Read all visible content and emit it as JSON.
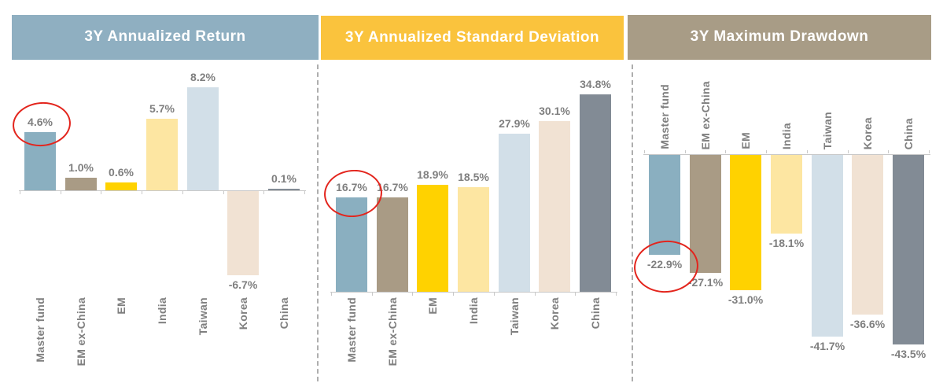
{
  "page": {
    "background": "#FFFFFF"
  },
  "styles": {
    "title_text_color": "#FFFFFF",
    "label_text_color": "#7F7F7F",
    "axis_color": "#C9C9C9",
    "separator_color": "#AEAEAE",
    "annotation_circle_color": "#E3251D"
  },
  "bar_colors": {
    "Master fund": "#8AAFC0",
    "EM ex-China": "#A99B85",
    "EM": "#FFD200",
    "India": "#FDE6A2",
    "Taiwan": "#D2DFE8",
    "Korea": "#F1E2D3",
    "China": "#828B95"
  },
  "chart_data": [
    {
      "type": "bar",
      "title": "3Y Annualized Return",
      "header_bg": "#8FAFC1",
      "categories": [
        "Master fund",
        "EM ex-China",
        "EM",
        "India",
        "Taiwan",
        "Korea",
        "China"
      ],
      "values": [
        4.6,
        1.0,
        0.6,
        5.7,
        8.2,
        -6.7,
        0.1
      ],
      "value_labels": [
        "4.6%",
        "1.0%",
        "0.6%",
        "5.7%",
        "8.2%",
        "-6.7%",
        "0.1%"
      ],
      "unit": "%",
      "ylim": [
        -8,
        10
      ],
      "grid": false,
      "legend": false,
      "annotation": {
        "circled_category": "Master fund",
        "circled_value_label": "4.6%"
      }
    },
    {
      "type": "bar",
      "title": "3Y Annualized Standard Deviation",
      "header_bg": "#FAC33D",
      "categories": [
        "Master fund",
        "EM ex-China",
        "EM",
        "India",
        "Taiwan",
        "Korea",
        "China"
      ],
      "values": [
        16.7,
        16.7,
        18.9,
        18.5,
        27.9,
        30.1,
        34.8
      ],
      "value_labels": [
        "16.7%",
        "16.7%",
        "18.9%",
        "18.5%",
        "27.9%",
        "30.1%",
        "34.8%"
      ],
      "unit": "%",
      "ylim": [
        0,
        38
      ],
      "grid": false,
      "legend": false,
      "annotation": {
        "circled_category": "Master fund",
        "circled_value_label": "16.7%"
      }
    },
    {
      "type": "bar",
      "title": "3Y Maximum Drawdown",
      "header_bg": "#A89C86",
      "categories": [
        "Master fund",
        "EM ex-China",
        "EM",
        "India",
        "Taiwan",
        "Korea",
        "China"
      ],
      "values": [
        -22.9,
        -27.1,
        -31.0,
        -18.1,
        -41.7,
        -36.6,
        -43.5
      ],
      "value_labels": [
        "-22.9%",
        "-27.1%",
        "-31.0%",
        "-18.1%",
        "-41.7%",
        "-36.6%",
        "-43.5%"
      ],
      "unit": "%",
      "ylim": [
        -46,
        0
      ],
      "grid": false,
      "legend": false,
      "annotation": {
        "circled_category": "Master fund",
        "circled_value_label": "-22.9%"
      }
    }
  ]
}
